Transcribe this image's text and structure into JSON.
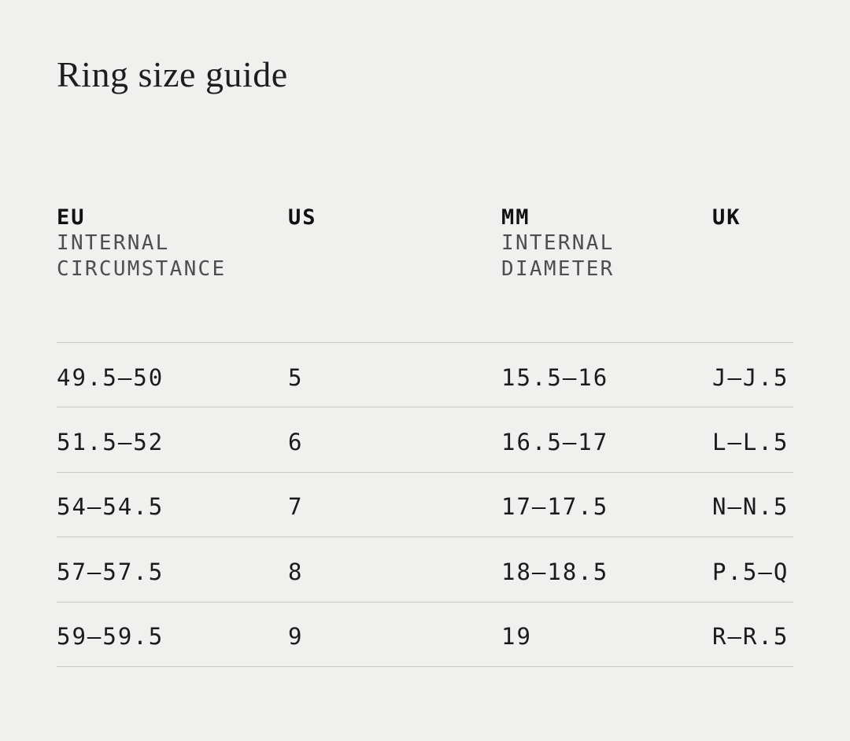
{
  "page": {
    "title": "Ring size guide"
  },
  "colors": {
    "background": "#f0f0ee",
    "heading_text": "#1e1e1e",
    "column_label_text": "#111111",
    "column_sublabel_text": "#4e4e4e",
    "cell_text": "#1b1b1b",
    "divider": "#c7c7c5"
  },
  "size_table": {
    "columns": [
      {
        "label": "EU",
        "sub_lines": [
          "INTERNAL",
          "CIRCUMSTANCE"
        ]
      },
      {
        "label": "US",
        "sub_lines": []
      },
      {
        "label": "MM",
        "sub_lines": [
          "INTERNAL",
          "DIAMETER"
        ]
      },
      {
        "label": "UK",
        "sub_lines": []
      }
    ],
    "rows": [
      {
        "eu": "49.5—50",
        "us": "5",
        "mm": "15.5—16",
        "uk": "J—J.5"
      },
      {
        "eu": "51.5—52",
        "us": "6",
        "mm": "16.5—17",
        "uk": "L—L.5"
      },
      {
        "eu": "54—54.5",
        "us": "7",
        "mm": "17—17.5",
        "uk": "N—N.5"
      },
      {
        "eu": "57—57.5",
        "us": "8",
        "mm": "18—18.5",
        "uk": "P.5—Q"
      },
      {
        "eu": "59—59.5",
        "us": "9",
        "mm": "19",
        "uk": "R—R.5"
      }
    ]
  }
}
